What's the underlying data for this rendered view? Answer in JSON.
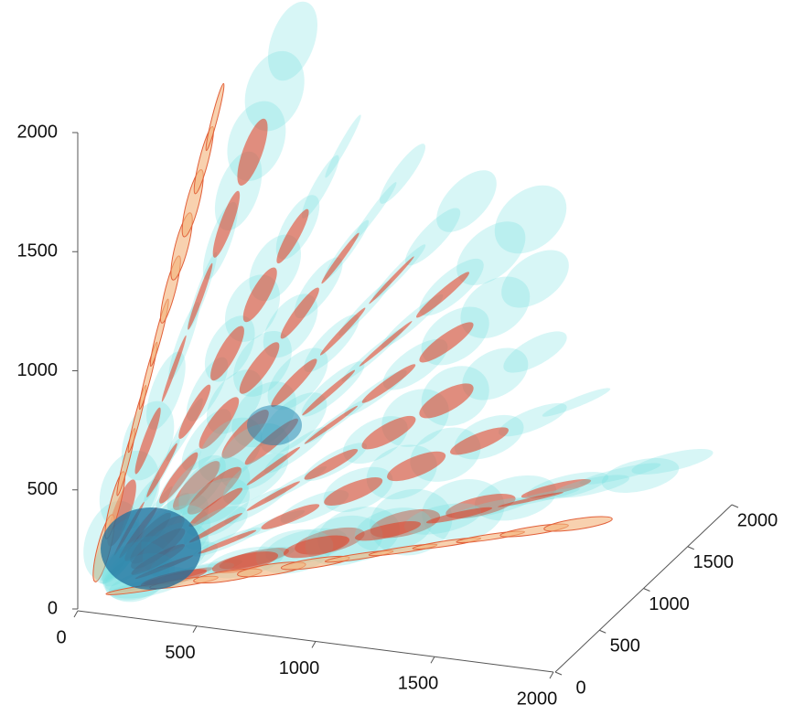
{
  "chart_data": {
    "type": "isosurface3d",
    "xlim": [
      0,
      2000
    ],
    "xticks": [
      0,
      500,
      1000,
      1500,
      2000
    ],
    "ylim": [
      0,
      2000
    ],
    "yticks": [
      0,
      500,
      1000,
      1500,
      2000
    ],
    "zlim": [
      0,
      2000
    ],
    "zticks": [
      0,
      500,
      1000,
      1500,
      2000
    ]
  }
}
